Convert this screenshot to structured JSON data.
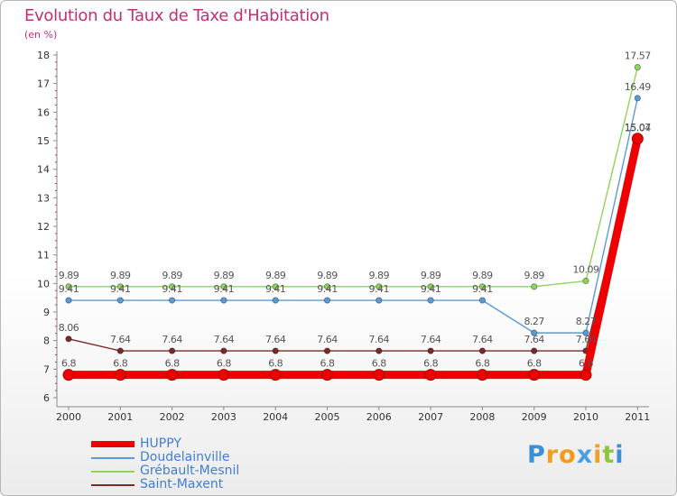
{
  "header": {
    "title": "Evolution du Taux de Taxe d'Habitation",
    "subtitle": "(en %)"
  },
  "logo": {
    "text": "Proxiti"
  },
  "chart_data": {
    "type": "line",
    "title": "Evolution du Taux de Taxe d'Habitation",
    "ylabel": "(en %)",
    "xlabel": "",
    "ylim": [
      6,
      18
    ],
    "yticks": [
      6,
      7,
      8,
      9,
      10,
      11,
      12,
      13,
      14,
      15,
      16,
      17,
      18
    ],
    "categories": [
      "2000",
      "2001",
      "2002",
      "2003",
      "2004",
      "2005",
      "2006",
      "2007",
      "2008",
      "2009",
      "2010",
      "2011"
    ],
    "legend_position": "bottom-left",
    "series": [
      {
        "name": "HUPPY",
        "color": "#ee0000",
        "values": [
          6.8,
          6.8,
          6.8,
          6.8,
          6.8,
          6.8,
          6.8,
          6.8,
          6.8,
          6.8,
          6.8,
          15.07
        ],
        "labels": [
          "6.8",
          "6.8",
          "6.8",
          "6.8",
          "6.8",
          "6.8",
          "6.8",
          "6.8",
          "6.8",
          "6.8",
          "6.8",
          "15.07"
        ]
      },
      {
        "name": "Doudelainville",
        "color": "#5b9bd5",
        "values": [
          9.41,
          9.41,
          9.41,
          9.41,
          9.41,
          9.41,
          9.41,
          9.41,
          9.41,
          8.27,
          8.27,
          16.49
        ],
        "labels": [
          "9.41",
          "9.41",
          "9.41",
          "9.41",
          "9.41",
          "9.41",
          "9.41",
          "9.41",
          "9.41",
          "8.27",
          "8.27",
          "16.49"
        ]
      },
      {
        "name": "Grébault-Mesnil",
        "color": "#8ed45c",
        "values": [
          9.89,
          9.89,
          9.89,
          9.89,
          9.89,
          9.89,
          9.89,
          9.89,
          9.89,
          9.89,
          10.09,
          17.57
        ],
        "labels": [
          "9.89",
          "9.89",
          "9.89",
          "9.89",
          "9.89",
          "9.89",
          "9.89",
          "9.89",
          "9.89",
          "9.89",
          "10.09",
          "17.57"
        ]
      },
      {
        "name": "Saint-Maxent",
        "color": "#7a2a2a",
        "values": [
          8.06,
          7.64,
          7.64,
          7.64,
          7.64,
          7.64,
          7.64,
          7.64,
          7.64,
          7.64,
          7.64,
          15.04
        ],
        "labels": [
          "8.06",
          "7.64",
          "7.64",
          "7.64",
          "7.64",
          "7.64",
          "7.64",
          "7.64",
          "7.64",
          "7.64",
          "7.64",
          "15.04"
        ]
      }
    ]
  }
}
